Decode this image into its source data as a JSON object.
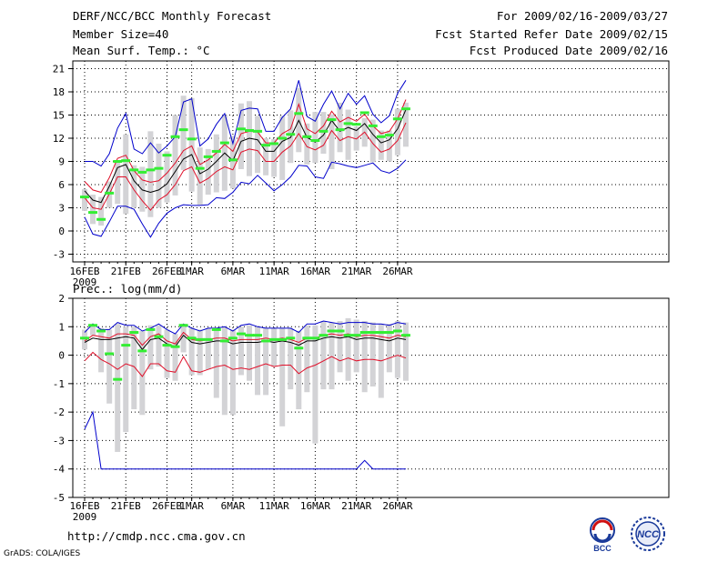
{
  "header": {
    "title": "DERF/NCC/BCC Monthly Forecast",
    "member_size": "Member Size=40",
    "variable": "Mean Surf. Temp.: °C",
    "period": "For 2009/02/16-2009/03/27",
    "refer_date": "Fcst Started Refer Date 2009/02/15",
    "produced_date": "Fcst Produced Date 2009/02/16"
  },
  "footer": {
    "url": "http://cmdp.ncc.cma.gov.cn",
    "credit": "GrADS: COLA/IGES",
    "logo_bcc": "BCC",
    "logo_ncc": "NCC"
  },
  "colors": {
    "envelope": "#0000cc",
    "spread": "#e0102a",
    "mean": "#000000",
    "bar": "#d3d3d6",
    "median": "#33ee33"
  },
  "chart_data": [
    {
      "type": "line",
      "title": "Mean Surf. Temp.: °C",
      "x_labels": [
        "16FEB",
        "21FEB",
        "26FEB",
        "1MAR",
        "6MAR",
        "11MAR",
        "16MAR",
        "21MAR",
        "26MAR"
      ],
      "year_label": "2009",
      "ylim": [
        -4,
        22
      ],
      "yticks": [
        -3,
        0,
        3,
        6,
        9,
        12,
        15,
        18,
        21
      ],
      "series": [
        {
          "name": "max",
          "values": [
            9.0,
            9.0,
            8.4,
            10.0,
            13.3,
            15.2,
            10.6,
            10.0,
            11.4,
            10.1,
            11.0,
            12.2,
            16.7,
            17.1,
            11.0,
            11.9,
            13.8,
            15.2,
            11.3,
            15.6,
            15.9,
            15.8,
            12.9,
            12.9,
            14.7,
            15.8,
            19.5,
            14.8,
            14.2,
            16.4,
            18.1,
            15.8,
            17.8,
            16.4,
            17.5,
            15.1,
            14.0,
            14.9,
            17.8,
            19.5
          ]
        },
        {
          "name": "upper",
          "values": [
            6.4,
            5.3,
            5.0,
            6.9,
            9.4,
            9.8,
            7.8,
            6.6,
            6.3,
            6.5,
            7.5,
            8.8,
            10.4,
            11.0,
            8.6,
            9.2,
            10.1,
            11.2,
            10.3,
            12.6,
            12.9,
            12.8,
            11.4,
            11.4,
            12.6,
            13.2,
            16.4,
            13.2,
            12.6,
            13.6,
            15.5,
            14.1,
            14.7,
            14.2,
            15.1,
            13.6,
            12.6,
            12.9,
            14.5,
            17.0
          ]
        },
        {
          "name": "mean",
          "values": [
            5.2,
            4.0,
            3.7,
            5.8,
            8.2,
            8.6,
            6.5,
            5.3,
            5.0,
            5.3,
            6.1,
            7.7,
            9.3,
            9.9,
            7.4,
            8.0,
            9.0,
            10.1,
            9.1,
            11.6,
            12.0,
            11.8,
            10.3,
            10.3,
            11.6,
            12.1,
            14.3,
            12.1,
            11.5,
            12.4,
            14.3,
            12.9,
            13.4,
            13.0,
            13.9,
            12.5,
            11.4,
            11.8,
            13.2,
            15.7
          ]
        },
        {
          "name": "lower",
          "values": [
            4.3,
            3.0,
            2.8,
            4.8,
            7.0,
            7.0,
            5.3,
            3.9,
            2.7,
            4.0,
            4.7,
            6.0,
            7.8,
            8.3,
            6.2,
            6.8,
            7.7,
            8.3,
            7.9,
            10.2,
            10.6,
            10.4,
            9.0,
            9.0,
            10.2,
            11.0,
            12.6,
            10.9,
            10.5,
            11.1,
            13.0,
            11.7,
            12.2,
            11.9,
            12.8,
            11.3,
            10.2,
            10.6,
            11.7,
            14.0
          ]
        },
        {
          "name": "min",
          "values": [
            1.8,
            -0.4,
            -0.7,
            1.2,
            3.2,
            3.2,
            2.8,
            0.9,
            -0.8,
            1.0,
            2.3,
            3.0,
            3.4,
            3.3,
            3.3,
            3.4,
            4.3,
            4.2,
            5.0,
            6.3,
            6.1,
            7.2,
            6.2,
            5.2,
            6.0,
            7.0,
            8.5,
            8.4,
            7.0,
            6.8,
            8.9,
            8.7,
            8.4,
            8.2,
            8.5,
            8.8,
            7.8,
            7.5,
            8.1,
            9.2
          ]
        },
        {
          "name": "bar_top",
          "values": [
            5.4,
            4.7,
            4.4,
            6.4,
            9.0,
            12.5,
            8.5,
            8.3,
            12.9,
            11.3,
            10.3,
            15.0,
            17.5,
            17.2,
            10.8,
            10.6,
            12.5,
            15.0,
            12.3,
            16.5,
            16.8,
            14.9,
            12.0,
            11.9,
            14.9,
            15.6,
            18.5,
            13.9,
            15.4,
            15.4,
            15.1,
            16.6,
            15.7,
            13.5,
            14.6,
            14.4,
            13.0,
            13.0,
            15.8,
            16.6
          ]
        },
        {
          "name": "bar_bottom",
          "values": [
            2.6,
            0.9,
            0.7,
            3.0,
            3.5,
            2.2,
            3.0,
            2.5,
            1.8,
            3.0,
            3.7,
            4.6,
            7.9,
            5.1,
            3.4,
            4.7,
            5.0,
            5.2,
            5.5,
            8.0,
            7.1,
            7.5,
            7.2,
            7.0,
            6.6,
            8.8,
            10.2,
            8.6,
            8.8,
            10.0,
            8.0,
            10.2,
            9.2,
            10.4,
            10.9,
            8.9,
            9.2,
            9.0,
            9.8,
            10.9
          ]
        },
        {
          "name": "median",
          "values": [
            4.4,
            2.4,
            1.5,
            4.9,
            9.0,
            9.1,
            7.9,
            7.6,
            7.9,
            8.1,
            9.8,
            12.2,
            13.1,
            11.9,
            8.1,
            9.6,
            10.3,
            11.4,
            9.2,
            13.2,
            13.0,
            12.9,
            11.1,
            11.3,
            12.0,
            12.5,
            15.2,
            12.2,
            11.7,
            12.9,
            14.4,
            13.1,
            13.9,
            13.8,
            15.3,
            13.6,
            12.2,
            12.4,
            14.5,
            15.8
          ]
        }
      ]
    },
    {
      "type": "line",
      "title": "Prec.: log(mm/d)",
      "x_labels": [
        "16FEB",
        "21FEB",
        "26FEB",
        "1MAR",
        "6MAR",
        "11MAR",
        "16MAR",
        "21MAR",
        "26MAR"
      ],
      "year_label": "2009",
      "ylim": [
        -5,
        2
      ],
      "yticks": [
        -5,
        -4,
        -3,
        -2,
        -1,
        0,
        1,
        2
      ],
      "series": [
        {
          "name": "max",
          "values": [
            0.8,
            1.1,
            0.9,
            0.9,
            1.15,
            1.05,
            1.05,
            0.85,
            0.95,
            1.1,
            0.9,
            0.75,
            1.1,
            0.95,
            0.85,
            0.95,
            0.95,
            1.0,
            0.85,
            1.05,
            1.1,
            1.0,
            0.95,
            0.95,
            0.95,
            0.95,
            0.8,
            1.1,
            1.1,
            1.2,
            1.15,
            1.1,
            1.15,
            1.15,
            1.15,
            1.1,
            1.1,
            1.05,
            1.15,
            1.1
          ]
        },
        {
          "name": "upper",
          "values": [
            0.5,
            0.7,
            0.65,
            0.6,
            0.75,
            0.75,
            0.7,
            0.35,
            0.65,
            0.75,
            0.5,
            0.4,
            0.8,
            0.55,
            0.5,
            0.55,
            0.6,
            0.6,
            0.5,
            0.55,
            0.55,
            0.55,
            0.6,
            0.55,
            0.6,
            0.55,
            0.45,
            0.6,
            0.6,
            0.7,
            0.75,
            0.7,
            0.75,
            0.65,
            0.7,
            0.7,
            0.65,
            0.6,
            0.7,
            0.65
          ]
        },
        {
          "name": "mean",
          "values": [
            0.45,
            0.6,
            0.55,
            0.55,
            0.6,
            0.65,
            0.6,
            0.2,
            0.55,
            0.6,
            0.4,
            0.3,
            0.7,
            0.45,
            0.4,
            0.45,
            0.5,
            0.5,
            0.4,
            0.45,
            0.45,
            0.45,
            0.5,
            0.45,
            0.5,
            0.45,
            0.35,
            0.5,
            0.5,
            0.6,
            0.65,
            0.6,
            0.65,
            0.55,
            0.6,
            0.6,
            0.55,
            0.5,
            0.6,
            0.55
          ]
        },
        {
          "name": "lower",
          "values": [
            -0.2,
            0.1,
            -0.15,
            -0.3,
            -0.5,
            -0.3,
            -0.4,
            -0.75,
            -0.3,
            -0.3,
            -0.55,
            -0.6,
            -0.05,
            -0.55,
            -0.6,
            -0.5,
            -0.4,
            -0.35,
            -0.5,
            -0.45,
            -0.5,
            -0.4,
            -0.3,
            -0.4,
            -0.35,
            -0.35,
            -0.65,
            -0.45,
            -0.35,
            -0.2,
            -0.05,
            -0.2,
            -0.1,
            -0.2,
            -0.15,
            -0.15,
            -0.2,
            -0.1,
            0.0,
            -0.1
          ]
        },
        {
          "name": "min",
          "values": [
            -2.6,
            -2.0,
            -4.0,
            -4.0,
            -4.0,
            -4.0,
            -4.0,
            -4.0,
            -4.0,
            -4.0,
            -4.0,
            -4.0,
            -4.0,
            -4.0,
            -4.0,
            -4.0,
            -4.0,
            -4.0,
            -4.0,
            -4.0,
            -4.0,
            -4.0,
            -4.0,
            -4.0,
            -4.0,
            -4.0,
            -4.0,
            -4.0,
            -4.0,
            -4.0,
            -4.0,
            -4.0,
            -4.0,
            -4.0,
            -3.7,
            -4.0,
            -4.0,
            -4.0,
            -4.0,
            -4.0
          ]
        },
        {
          "name": "bar_top",
          "values": [
            0.9,
            1.05,
            0.95,
            0.9,
            1.1,
            1.0,
            1.0,
            0.85,
            1.05,
            1.05,
            0.9,
            0.75,
            1.1,
            0.95,
            0.9,
            0.95,
            0.95,
            1.0,
            0.9,
            1.0,
            1.05,
            1.0,
            0.95,
            0.95,
            0.95,
            0.95,
            0.85,
            1.05,
            1.05,
            1.2,
            1.15,
            1.2,
            1.3,
            1.25,
            1.2,
            1.15,
            1.1,
            1.1,
            1.2,
            1.15
          ]
        },
        {
          "name": "bar_bottom",
          "values": [
            0.2,
            0.7,
            -0.6,
            -1.7,
            -3.4,
            -2.7,
            -1.9,
            -2.1,
            -0.5,
            -0.4,
            -0.8,
            -0.9,
            0.1,
            -0.7,
            -0.7,
            -0.5,
            -1.5,
            -2.1,
            -2.1,
            -0.7,
            -0.9,
            -1.4,
            -1.4,
            -0.4,
            -2.5,
            -1.2,
            -1.9,
            -1.3,
            -3.1,
            -1.2,
            -1.2,
            -0.6,
            -0.9,
            -0.6,
            -1.3,
            -1.1,
            -1.5,
            -0.6,
            -0.8,
            -0.9
          ]
        },
        {
          "name": "median",
          "values": [
            0.6,
            1.05,
            0.85,
            0.05,
            -0.85,
            0.35,
            0.8,
            0.15,
            0.9,
            0.65,
            0.35,
            0.3,
            1.05,
            0.6,
            0.55,
            0.55,
            0.9,
            0.5,
            0.6,
            0.75,
            0.7,
            0.7,
            0.5,
            0.55,
            0.55,
            0.6,
            0.25,
            0.6,
            0.6,
            0.7,
            0.85,
            0.85,
            0.7,
            0.7,
            0.8,
            0.8,
            0.8,
            0.8,
            0.85,
            0.7
          ]
        }
      ]
    }
  ]
}
